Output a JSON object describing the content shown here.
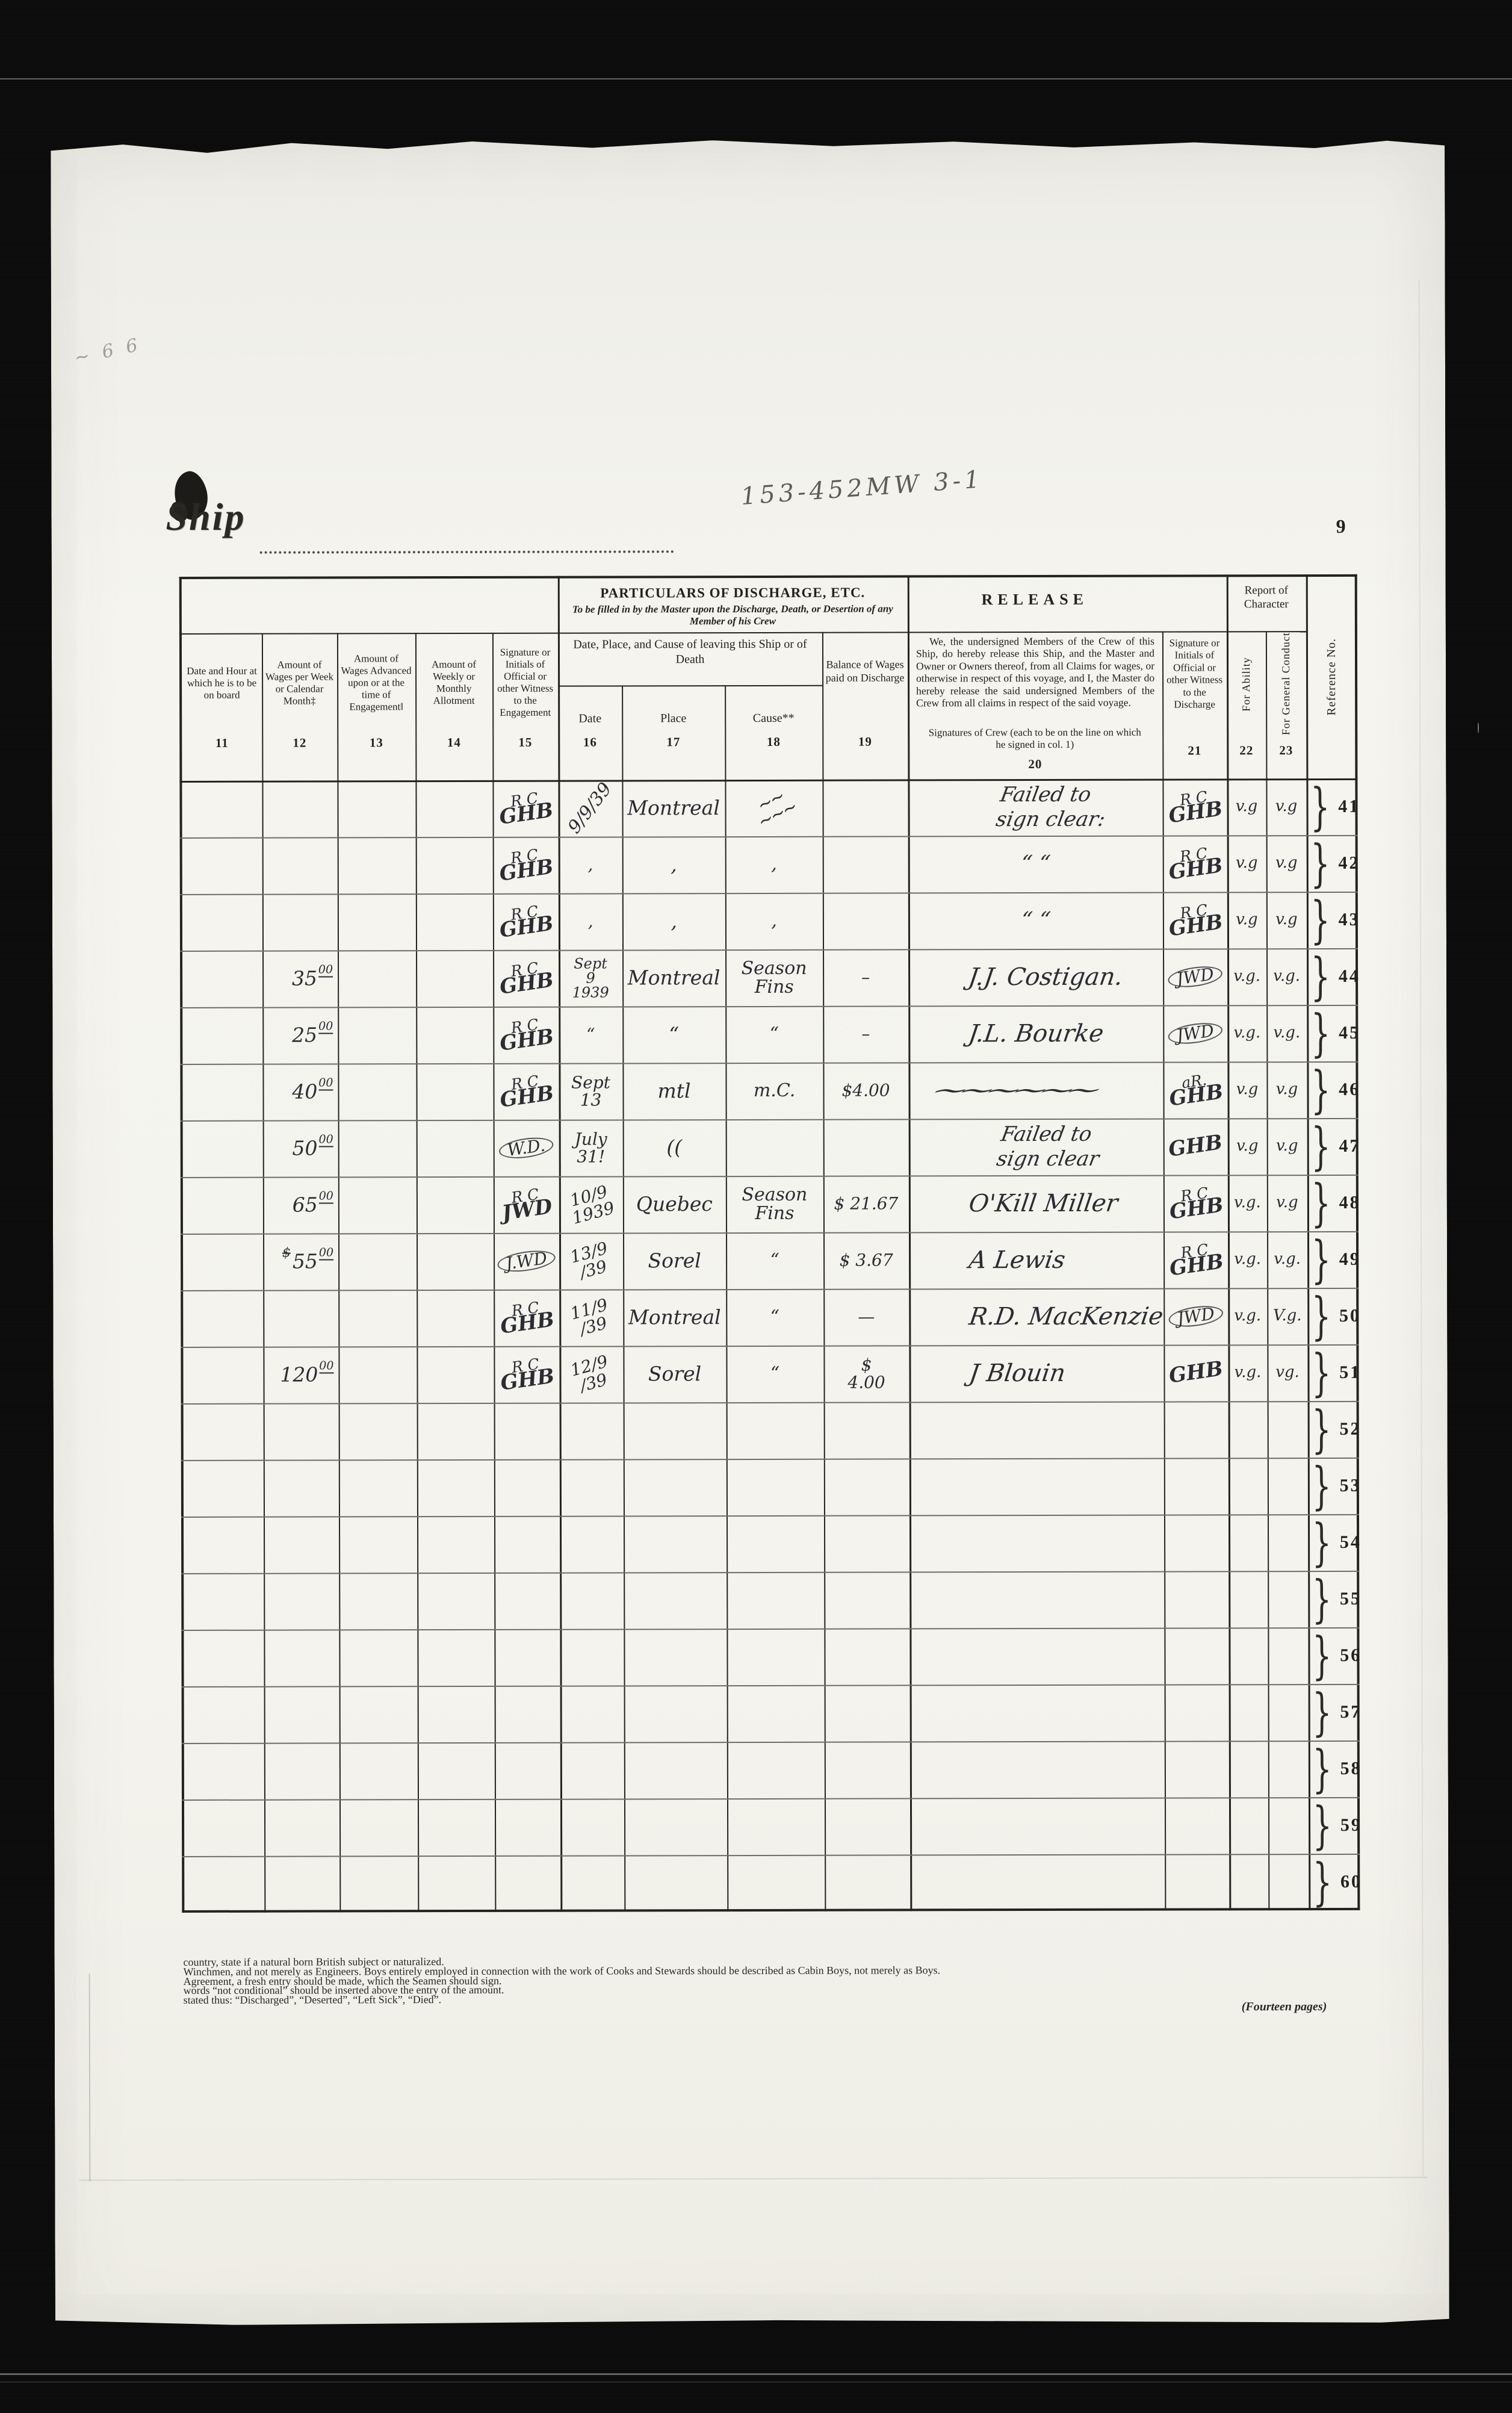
{
  "page": {
    "ship_label": "Ship",
    "film_note": "153-452MW 3-1",
    "page_number": "9",
    "pages_note": "(Fourteen pages)",
    "stray_marks": [
      "~ 6 6",
      "d"
    ]
  },
  "table": {
    "left_columns": [
      {
        "num": "11",
        "label": "Date and Hour at which he is to be on board"
      },
      {
        "num": "12",
        "label": "Amount of Wages per Week or Calendar Month‡"
      },
      {
        "num": "13",
        "label": "Amount of Wages Advanced upon or at the time of Engagement‖"
      },
      {
        "num": "14",
        "label": "Amount of Weekly or Monthly Allotment"
      },
      {
        "num": "15",
        "label": "Signature or Initials of Official or other Witness to the Engagement"
      }
    ],
    "particulars": {
      "title": "PARTICULARS OF DISCHARGE, ETC.",
      "note": "To be filled in by the Master upon the Discharge, Death, or Desertion of any Member of his Crew",
      "group_label": "Date, Place, and Cause of leaving this Ship or of Death",
      "date_label": "Date",
      "date_num": "16",
      "place_label": "Place",
      "place_num": "17",
      "cause_label": "Cause**",
      "cause_num": "18",
      "balance_label": "Balance of Wages paid on Discharge",
      "balance_num": "19"
    },
    "release": {
      "title": "RELEASE",
      "paragraph": "We, the undersigned Members of the Crew of this Ship, do hereby release this Ship, and the Master and Owner or Owners thereof, from all Claims for wages, or otherwise in respect of this voyage, and I, the Master do hereby release the said undersigned Members of the Crew from all claims in respect of the said voyage.",
      "signatures_note": "Signatures of Crew (each to be on the line on which he signed in col. 1)",
      "col_num": "20",
      "witness_label": "Signature or Initials of Official or other Witness to the Discharge",
      "witness_num": "21",
      "report_title": "Report of Character",
      "ability_label": "For Ability",
      "ability_num": "22",
      "conduct_label": "For General Conduct",
      "conduct_num": "23"
    },
    "reference_label": "Reference No.",
    "rows": [
      {
        "ref": "41",
        "wages": "",
        "wages_sup": "",
        "wages_note": "",
        "sig_engage": [
          "R C",
          "GHB"
        ],
        "date": [
          "9/9/39"
        ],
        "place": "Montreal",
        "cause": [
          "~~",
          "~~~"
        ],
        "balance": [],
        "crew": [
          "Failed to",
          "sign clear:"
        ],
        "sig_discharge": [
          "R C",
          "GHB"
        ],
        "ability": "v.g",
        "conduct": "v.g"
      },
      {
        "ref": "42",
        "wages": "",
        "wages_sup": "",
        "wages_note": "",
        "sig_engage": [
          "R C",
          "GHB"
        ],
        "date": [
          "‚"
        ],
        "place": "‚",
        "cause": [
          "‚"
        ],
        "balance": [],
        "crew": [
          "“          “"
        ],
        "sig_discharge": [
          "R C",
          "GHB"
        ],
        "ability": "v.g",
        "conduct": "v.g"
      },
      {
        "ref": "43",
        "wages": "",
        "wages_sup": "",
        "wages_note": "",
        "sig_engage": [
          "R C",
          "GHB"
        ],
        "date": [
          "‚"
        ],
        "place": "‚",
        "cause": [
          "‚"
        ],
        "balance": [],
        "crew": [
          "“          “"
        ],
        "sig_discharge": [
          "R C",
          "GHB"
        ],
        "ability": "v.g",
        "conduct": "v.g"
      },
      {
        "ref": "44",
        "wages": "35",
        "wages_sup": "00",
        "wages_note": "",
        "sig_engage": [
          "R C",
          "GHB"
        ],
        "date": [
          "Sept",
          "9",
          "1939"
        ],
        "place": "Montreal",
        "cause": [
          "Season",
          "Fins"
        ],
        "balance": [
          "–"
        ],
        "crew": [
          "J.J. Costigan."
        ],
        "sig_discharge": [
          "JWD"
        ],
        "ability": "v.g.",
        "conduct": "v.g."
      },
      {
        "ref": "45",
        "wages": "25",
        "wages_sup": "00",
        "wages_note": "",
        "sig_engage": [
          "R C",
          "GHB"
        ],
        "date": [
          "“"
        ],
        "place": "“",
        "cause": [
          "“"
        ],
        "balance": [
          "–"
        ],
        "crew": [
          "J.L. Bourke"
        ],
        "sig_discharge": [
          "JWD"
        ],
        "ability": "v.g.",
        "conduct": "v.g."
      },
      {
        "ref": "46",
        "wages": "40",
        "wages_sup": "00",
        "wages_note": "",
        "sig_engage": [
          "R C",
          "GHB"
        ],
        "date": [
          "Sept 13"
        ],
        "place": "mtl",
        "cause": [
          "m.C."
        ],
        "balance": [
          "$4.00"
        ],
        "crew": [
          "~~~~~~"
        ],
        "sig_discharge": [
          "aR.",
          "GHB"
        ],
        "ability": "v.g",
        "conduct": "v.g"
      },
      {
        "ref": "47",
        "wages": "50",
        "wages_sup": "00",
        "wages_note": "",
        "sig_engage": [
          "W.D."
        ],
        "date": [
          "July",
          "31!"
        ],
        "place": "((",
        "cause": [],
        "balance": [],
        "crew": [
          "Failed to",
          "sign clear"
        ],
        "sig_discharge": [
          "GHB"
        ],
        "ability": "v.g",
        "conduct": "v.g"
      },
      {
        "ref": "48",
        "wages": "65",
        "wages_sup": "00",
        "wages_note": "",
        "sig_engage": [
          "R C",
          "JWD"
        ],
        "date": [
          "10/9",
          "1939"
        ],
        "place": "Quebec",
        "cause": [
          "Season",
          "Fins"
        ],
        "balance": [
          "$ 21.67"
        ],
        "crew": [
          "O'Kill Miller"
        ],
        "sig_discharge": [
          "R C",
          "GHB"
        ],
        "ability": "v.g.",
        "conduct": "v.g"
      },
      {
        "ref": "49",
        "wages": "55",
        "wages_sup": "00",
        "wages_note": "$",
        "sig_engage": [
          "J.WD"
        ],
        "date": [
          "13/9",
          "/39"
        ],
        "place": "Sorel",
        "cause": [
          "“"
        ],
        "balance": [
          "$ 3.67"
        ],
        "crew": [
          "A Lewis"
        ],
        "sig_discharge": [
          "R C",
          "GHB"
        ],
        "ability": "v.g.",
        "conduct": "v.g."
      },
      {
        "ref": "50",
        "wages": "",
        "wages_sup": "",
        "wages_note": "",
        "sig_engage": [
          "R C",
          "GHB"
        ],
        "date": [
          "11/9",
          "/39"
        ],
        "place": "Montreal",
        "cause": [
          "“"
        ],
        "balance": [
          "—"
        ],
        "crew": [
          "R.D. MacKenzie"
        ],
        "sig_discharge": [
          "JWD"
        ],
        "ability": "v.g.",
        "conduct": "V.g."
      },
      {
        "ref": "51",
        "wages": "120",
        "wages_sup": "00",
        "wages_note": "",
        "sig_engage": [
          "R C",
          "GHB"
        ],
        "date": [
          "12/9",
          "/39"
        ],
        "place": "Sorel",
        "cause": [
          "“"
        ],
        "balance": [
          "$",
          "4.00"
        ],
        "crew": [
          "J Blouin"
        ],
        "sig_discharge": [
          "GHB"
        ],
        "ability": "v.g.",
        "conduct": "vg."
      },
      {
        "ref": "52",
        "wages": "",
        "wages_sup": "",
        "wages_note": "",
        "sig_engage": [],
        "date": [],
        "place": "",
        "cause": [],
        "balance": [],
        "crew": [],
        "sig_discharge": [],
        "ability": "",
        "conduct": ""
      },
      {
        "ref": "53",
        "wages": "",
        "wages_sup": "",
        "wages_note": "",
        "sig_engage": [],
        "date": [],
        "place": "",
        "cause": [],
        "balance": [],
        "crew": [],
        "sig_discharge": [],
        "ability": "",
        "conduct": ""
      },
      {
        "ref": "54",
        "wages": "",
        "wages_sup": "",
        "wages_note": "",
        "sig_engage": [],
        "date": [],
        "place": "",
        "cause": [],
        "balance": [],
        "crew": [],
        "sig_discharge": [],
        "ability": "",
        "conduct": ""
      },
      {
        "ref": "55",
        "wages": "",
        "wages_sup": "",
        "wages_note": "",
        "sig_engage": [],
        "date": [],
        "place": "",
        "cause": [],
        "balance": [],
        "crew": [],
        "sig_discharge": [],
        "ability": "",
        "conduct": ""
      },
      {
        "ref": "56",
        "wages": "",
        "wages_sup": "",
        "wages_note": "",
        "sig_engage": [],
        "date": [],
        "place": "",
        "cause": [],
        "balance": [],
        "crew": [],
        "sig_discharge": [],
        "ability": "",
        "conduct": ""
      },
      {
        "ref": "57",
        "wages": "",
        "wages_sup": "",
        "wages_note": "",
        "sig_engage": [],
        "date": [],
        "place": "",
        "cause": [],
        "balance": [],
        "crew": [],
        "sig_discharge": [],
        "ability": "",
        "conduct": ""
      },
      {
        "ref": "58",
        "wages": "",
        "wages_sup": "",
        "wages_note": "",
        "sig_engage": [],
        "date": [],
        "place": "",
        "cause": [],
        "balance": [],
        "crew": [],
        "sig_discharge": [],
        "ability": "",
        "conduct": ""
      },
      {
        "ref": "59",
        "wages": "",
        "wages_sup": "",
        "wages_note": "",
        "sig_engage": [],
        "date": [],
        "place": "",
        "cause": [],
        "balance": [],
        "crew": [],
        "sig_discharge": [],
        "ability": "",
        "conduct": ""
      },
      {
        "ref": "60",
        "wages": "",
        "wages_sup": "",
        "wages_note": "",
        "sig_engage": [],
        "date": [],
        "place": "",
        "cause": [],
        "balance": [],
        "crew": [],
        "sig_discharge": [],
        "ability": "",
        "conduct": ""
      }
    ]
  },
  "footnotes": [
    "country, state if a natural born British subject or naturalized.",
    "Winchmen, and not merely as Engineers.   Boys entirely employed in connection with the work of Cooks and Stewards should be described as Cabin Boys, not merely as Boys.",
    "Agreement, a fresh entry should be made, which the Seamen should sign.",
    "words “not conditional” should be inserted above the entry of the amount.",
    "stated thus:  “Discharged”, “Deserted”, “Left Sick”, “Died”."
  ]
}
